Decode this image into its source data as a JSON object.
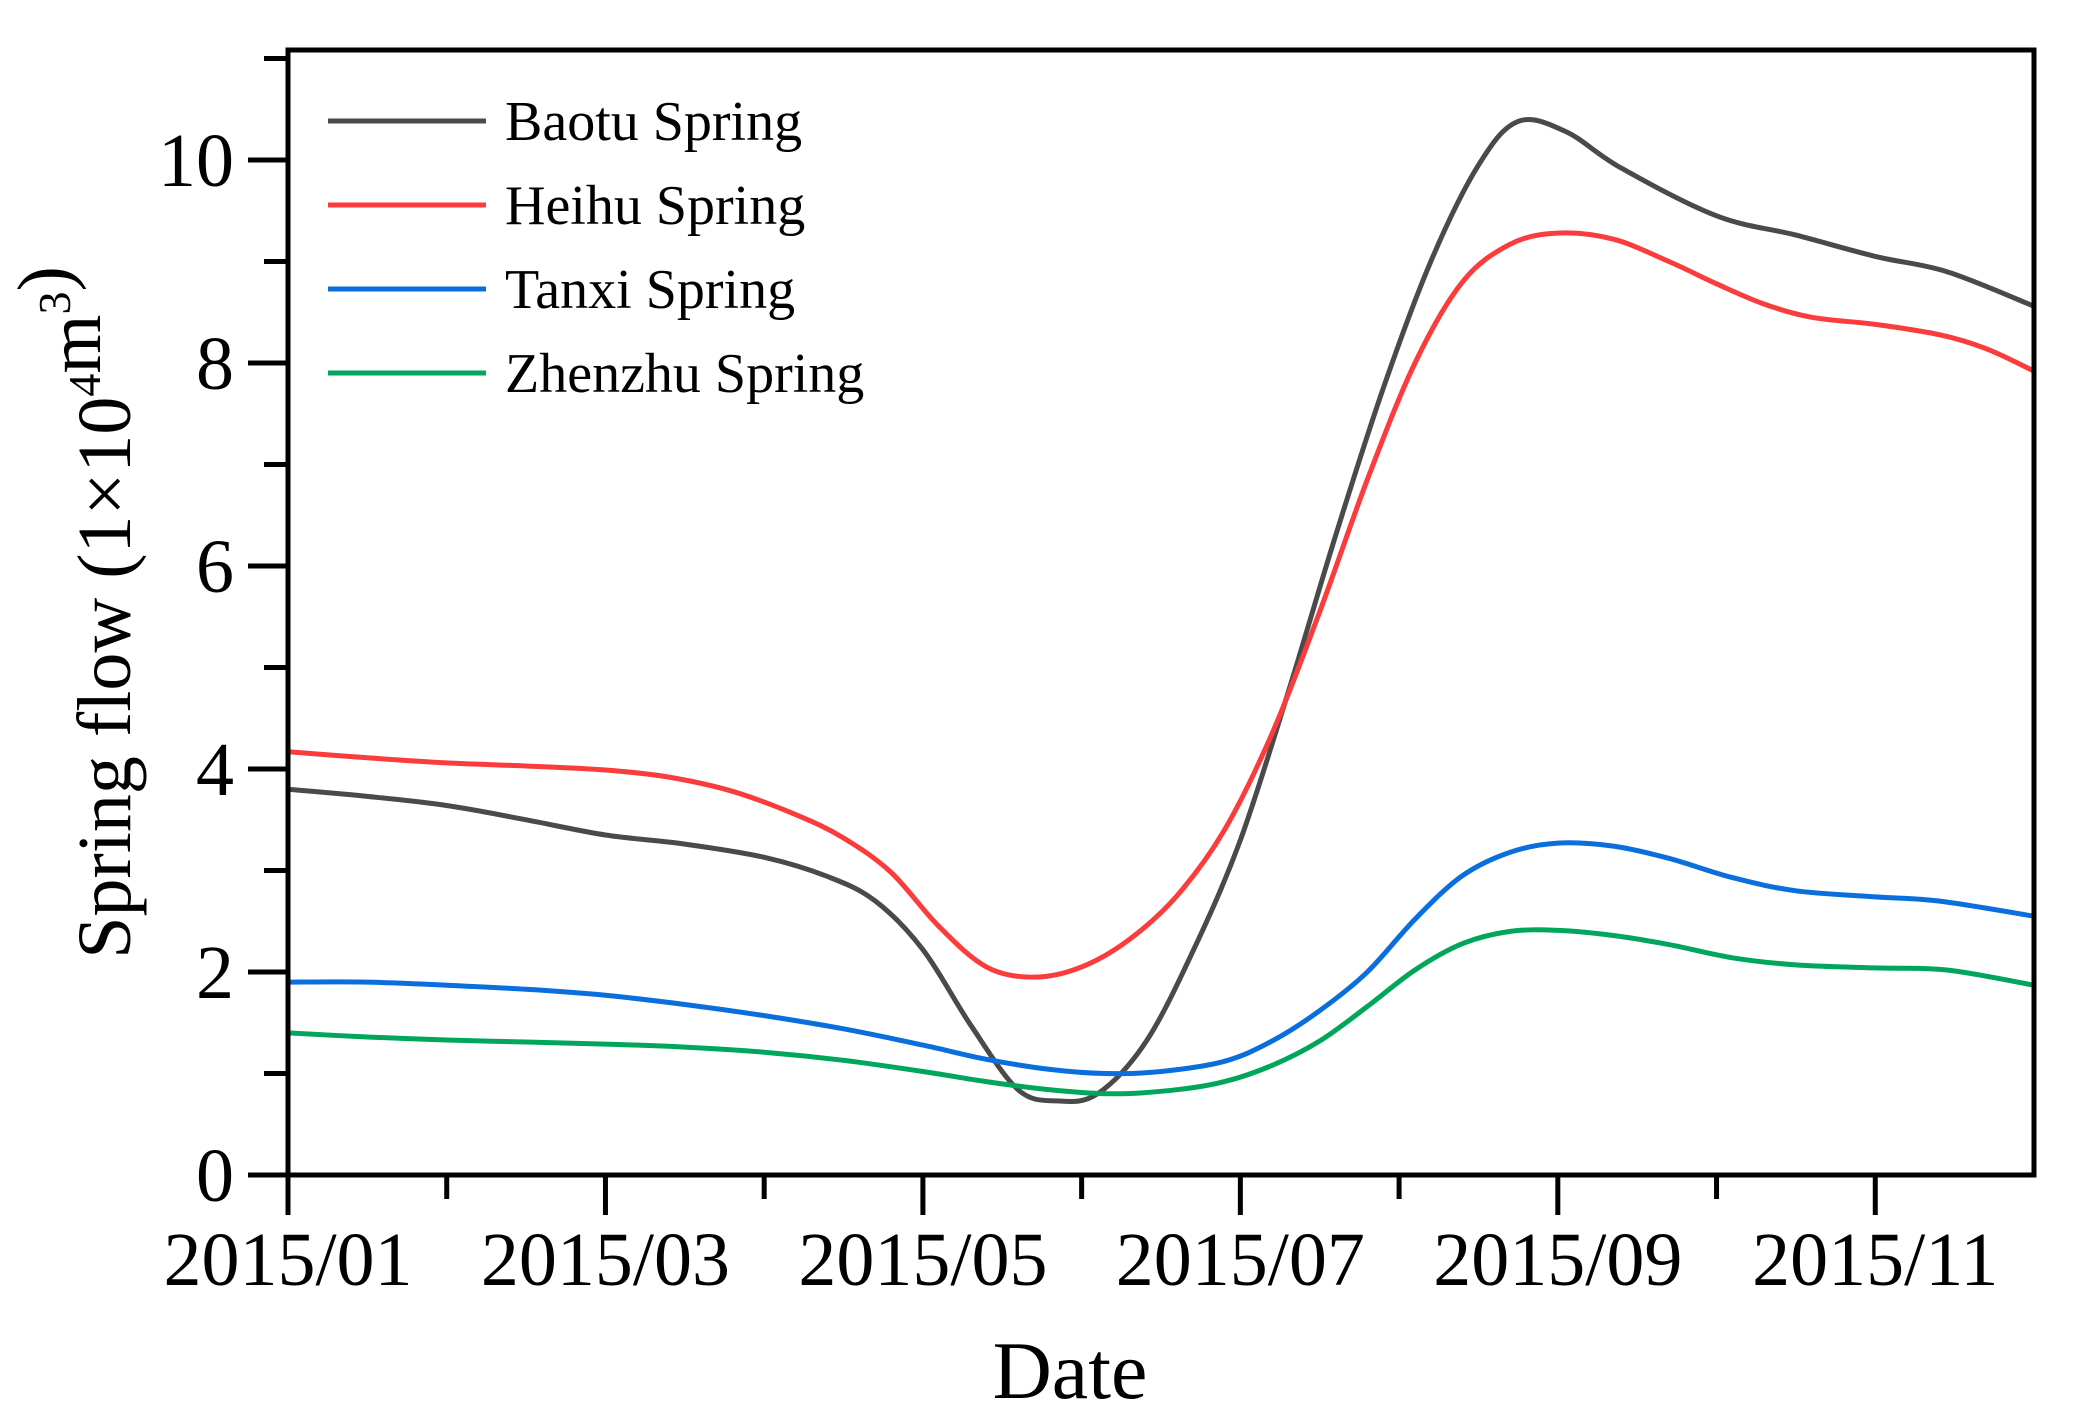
{
  "figure": {
    "background": "#ffffff"
  },
  "chart_data": {
    "type": "line",
    "title": "",
    "xlabel": "Date",
    "ylabel": "Spring flow (1×10⁴m³)",
    "ylabel_parts": [
      {
        "text": "Spring flow (1×10"
      },
      {
        "text": "4",
        "sup": true
      },
      {
        "text": "m"
      },
      {
        "text": "3",
        "sup": true
      },
      {
        "text": ")"
      }
    ],
    "x_axis": {
      "tick_labels": [
        "2015/01",
        "2015/03",
        "2015/05",
        "2015/07",
        "2015/09",
        "2015/11"
      ],
      "major_tick_months": [
        0,
        2,
        4,
        6,
        8,
        10
      ],
      "minor_tick_months": [
        1,
        3,
        5,
        7,
        9
      ],
      "range_months": [
        "2015/01",
        "2015/12"
      ]
    },
    "y_axis": {
      "tick_labels": [
        "0",
        "2",
        "4",
        "6",
        "8",
        "10"
      ],
      "major_ticks": [
        0,
        2,
        4,
        6,
        8,
        10
      ],
      "minor_ticks": [
        1,
        3,
        5,
        7,
        9,
        11
      ],
      "ylim": [
        0,
        11.08
      ]
    },
    "grid": false,
    "legend_position": "top-left-inside",
    "axis_color": "#000000",
    "series": [
      {
        "name": "Baotu Spring",
        "color": "#4a4a4a",
        "points": [
          [
            0,
            3.8
          ],
          [
            0.5,
            3.73
          ],
          [
            1,
            3.64
          ],
          [
            1.5,
            3.5
          ],
          [
            2,
            3.35
          ],
          [
            2.5,
            3.26
          ],
          [
            3,
            3.13
          ],
          [
            3.4,
            2.94
          ],
          [
            3.7,
            2.7
          ],
          [
            4.0,
            2.22
          ],
          [
            4.3,
            1.48
          ],
          [
            4.6,
            0.84
          ],
          [
            4.85,
            0.73
          ],
          [
            5.1,
            0.8
          ],
          [
            5.4,
            1.3
          ],
          [
            5.7,
            2.2
          ],
          [
            6.0,
            3.3
          ],
          [
            6.3,
            4.75
          ],
          [
            6.6,
            6.3
          ],
          [
            6.9,
            7.75
          ],
          [
            7.2,
            9.0
          ],
          [
            7.5,
            9.95
          ],
          [
            7.75,
            10.38
          ],
          [
            8.05,
            10.28
          ],
          [
            8.4,
            9.92
          ],
          [
            9.0,
            9.45
          ],
          [
            9.5,
            9.26
          ],
          [
            10,
            9.05
          ],
          [
            10.45,
            8.9
          ],
          [
            11,
            8.56
          ]
        ]
      },
      {
        "name": "Heihu Spring",
        "color": "#fa3c3c",
        "points": [
          [
            0,
            4.17
          ],
          [
            0.5,
            4.11
          ],
          [
            1,
            4.06
          ],
          [
            1.5,
            4.03
          ],
          [
            2,
            3.99
          ],
          [
            2.4,
            3.92
          ],
          [
            2.8,
            3.78
          ],
          [
            3.2,
            3.55
          ],
          [
            3.5,
            3.32
          ],
          [
            3.8,
            2.98
          ],
          [
            4.1,
            2.45
          ],
          [
            4.4,
            2.05
          ],
          [
            4.7,
            1.95
          ],
          [
            5.0,
            2.05
          ],
          [
            5.3,
            2.32
          ],
          [
            5.6,
            2.75
          ],
          [
            5.9,
            3.4
          ],
          [
            6.2,
            4.35
          ],
          [
            6.5,
            5.55
          ],
          [
            6.8,
            6.85
          ],
          [
            7.1,
            8.0
          ],
          [
            7.4,
            8.8
          ],
          [
            7.7,
            9.17
          ],
          [
            8.0,
            9.28
          ],
          [
            8.35,
            9.22
          ],
          [
            8.7,
            9.0
          ],
          [
            9.0,
            8.78
          ],
          [
            9.3,
            8.58
          ],
          [
            9.6,
            8.45
          ],
          [
            10,
            8.38
          ],
          [
            10.4,
            8.28
          ],
          [
            10.7,
            8.14
          ],
          [
            11,
            7.92
          ]
        ]
      },
      {
        "name": "Tanxi Spring",
        "color": "#0a6fdc",
        "points": [
          [
            0,
            1.9
          ],
          [
            0.5,
            1.9
          ],
          [
            1,
            1.87
          ],
          [
            1.5,
            1.83
          ],
          [
            2,
            1.77
          ],
          [
            2.5,
            1.68
          ],
          [
            3,
            1.57
          ],
          [
            3.5,
            1.44
          ],
          [
            4,
            1.28
          ],
          [
            4.4,
            1.14
          ],
          [
            4.8,
            1.04
          ],
          [
            5.15,
            1.0
          ],
          [
            5.5,
            1.02
          ],
          [
            5.9,
            1.12
          ],
          [
            6.2,
            1.32
          ],
          [
            6.5,
            1.62
          ],
          [
            6.8,
            2.0
          ],
          [
            7.1,
            2.52
          ],
          [
            7.4,
            2.95
          ],
          [
            7.7,
            3.18
          ],
          [
            8.0,
            3.27
          ],
          [
            8.35,
            3.24
          ],
          [
            8.7,
            3.12
          ],
          [
            9.1,
            2.93
          ],
          [
            9.5,
            2.8
          ],
          [
            10,
            2.74
          ],
          [
            10.4,
            2.7
          ],
          [
            11,
            2.55
          ]
        ]
      },
      {
        "name": "Zhenzhu Spring",
        "color": "#00a65c",
        "points": [
          [
            0,
            1.4
          ],
          [
            0.5,
            1.36
          ],
          [
            1,
            1.33
          ],
          [
            1.5,
            1.31
          ],
          [
            2,
            1.29
          ],
          [
            2.5,
            1.26
          ],
          [
            3,
            1.21
          ],
          [
            3.5,
            1.13
          ],
          [
            4,
            1.02
          ],
          [
            4.4,
            0.92
          ],
          [
            4.8,
            0.84
          ],
          [
            5.2,
            0.8
          ],
          [
            5.6,
            0.84
          ],
          [
            5.9,
            0.92
          ],
          [
            6.2,
            1.08
          ],
          [
            6.5,
            1.32
          ],
          [
            6.8,
            1.66
          ],
          [
            7.1,
            2.02
          ],
          [
            7.4,
            2.28
          ],
          [
            7.7,
            2.4
          ],
          [
            8.0,
            2.41
          ],
          [
            8.35,
            2.36
          ],
          [
            8.7,
            2.27
          ],
          [
            9.1,
            2.14
          ],
          [
            9.5,
            2.07
          ],
          [
            10,
            2.04
          ],
          [
            10.45,
            2.02
          ],
          [
            11,
            1.87
          ]
        ]
      }
    ]
  }
}
